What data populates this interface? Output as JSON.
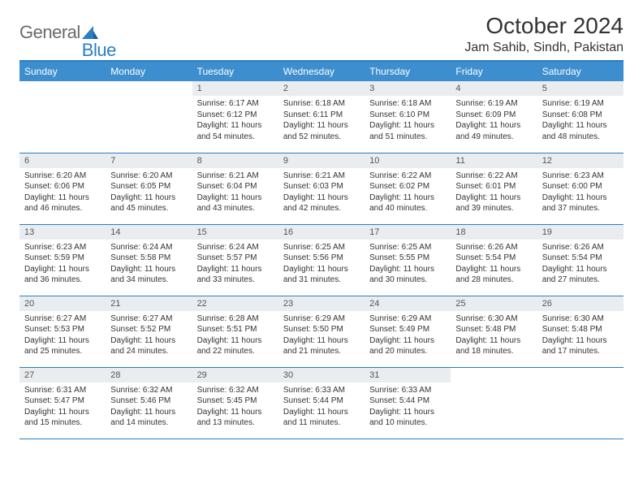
{
  "logo": {
    "text1": "General",
    "text2": "Blue"
  },
  "title": "October 2024",
  "location": "Jam Sahib, Sindh, Pakistan",
  "colors": {
    "header_bg": "#3d8ecf",
    "border": "#2a7ec3",
    "daynum_bg": "#e9edf0",
    "logo_gray": "#6a6a6a",
    "logo_blue": "#2a7ec3"
  },
  "weekdays": [
    "Sunday",
    "Monday",
    "Tuesday",
    "Wednesday",
    "Thursday",
    "Friday",
    "Saturday"
  ],
  "weeks": [
    [
      null,
      null,
      {
        "d": "1",
        "sr": "6:17 AM",
        "ss": "6:12 PM",
        "dl": "11 hours and 54 minutes."
      },
      {
        "d": "2",
        "sr": "6:18 AM",
        "ss": "6:11 PM",
        "dl": "11 hours and 52 minutes."
      },
      {
        "d": "3",
        "sr": "6:18 AM",
        "ss": "6:10 PM",
        "dl": "11 hours and 51 minutes."
      },
      {
        "d": "4",
        "sr": "6:19 AM",
        "ss": "6:09 PM",
        "dl": "11 hours and 49 minutes."
      },
      {
        "d": "5",
        "sr": "6:19 AM",
        "ss": "6:08 PM",
        "dl": "11 hours and 48 minutes."
      }
    ],
    [
      {
        "d": "6",
        "sr": "6:20 AM",
        "ss": "6:06 PM",
        "dl": "11 hours and 46 minutes."
      },
      {
        "d": "7",
        "sr": "6:20 AM",
        "ss": "6:05 PM",
        "dl": "11 hours and 45 minutes."
      },
      {
        "d": "8",
        "sr": "6:21 AM",
        "ss": "6:04 PM",
        "dl": "11 hours and 43 minutes."
      },
      {
        "d": "9",
        "sr": "6:21 AM",
        "ss": "6:03 PM",
        "dl": "11 hours and 42 minutes."
      },
      {
        "d": "10",
        "sr": "6:22 AM",
        "ss": "6:02 PM",
        "dl": "11 hours and 40 minutes."
      },
      {
        "d": "11",
        "sr": "6:22 AM",
        "ss": "6:01 PM",
        "dl": "11 hours and 39 minutes."
      },
      {
        "d": "12",
        "sr": "6:23 AM",
        "ss": "6:00 PM",
        "dl": "11 hours and 37 minutes."
      }
    ],
    [
      {
        "d": "13",
        "sr": "6:23 AM",
        "ss": "5:59 PM",
        "dl": "11 hours and 36 minutes."
      },
      {
        "d": "14",
        "sr": "6:24 AM",
        "ss": "5:58 PM",
        "dl": "11 hours and 34 minutes."
      },
      {
        "d": "15",
        "sr": "6:24 AM",
        "ss": "5:57 PM",
        "dl": "11 hours and 33 minutes."
      },
      {
        "d": "16",
        "sr": "6:25 AM",
        "ss": "5:56 PM",
        "dl": "11 hours and 31 minutes."
      },
      {
        "d": "17",
        "sr": "6:25 AM",
        "ss": "5:55 PM",
        "dl": "11 hours and 30 minutes."
      },
      {
        "d": "18",
        "sr": "6:26 AM",
        "ss": "5:54 PM",
        "dl": "11 hours and 28 minutes."
      },
      {
        "d": "19",
        "sr": "6:26 AM",
        "ss": "5:54 PM",
        "dl": "11 hours and 27 minutes."
      }
    ],
    [
      {
        "d": "20",
        "sr": "6:27 AM",
        "ss": "5:53 PM",
        "dl": "11 hours and 25 minutes."
      },
      {
        "d": "21",
        "sr": "6:27 AM",
        "ss": "5:52 PM",
        "dl": "11 hours and 24 minutes."
      },
      {
        "d": "22",
        "sr": "6:28 AM",
        "ss": "5:51 PM",
        "dl": "11 hours and 22 minutes."
      },
      {
        "d": "23",
        "sr": "6:29 AM",
        "ss": "5:50 PM",
        "dl": "11 hours and 21 minutes."
      },
      {
        "d": "24",
        "sr": "6:29 AM",
        "ss": "5:49 PM",
        "dl": "11 hours and 20 minutes."
      },
      {
        "d": "25",
        "sr": "6:30 AM",
        "ss": "5:48 PM",
        "dl": "11 hours and 18 minutes."
      },
      {
        "d": "26",
        "sr": "6:30 AM",
        "ss": "5:48 PM",
        "dl": "11 hours and 17 minutes."
      }
    ],
    [
      {
        "d": "27",
        "sr": "6:31 AM",
        "ss": "5:47 PM",
        "dl": "11 hours and 15 minutes."
      },
      {
        "d": "28",
        "sr": "6:32 AM",
        "ss": "5:46 PM",
        "dl": "11 hours and 14 minutes."
      },
      {
        "d": "29",
        "sr": "6:32 AM",
        "ss": "5:45 PM",
        "dl": "11 hours and 13 minutes."
      },
      {
        "d": "30",
        "sr": "6:33 AM",
        "ss": "5:44 PM",
        "dl": "11 hours and 11 minutes."
      },
      {
        "d": "31",
        "sr": "6:33 AM",
        "ss": "5:44 PM",
        "dl": "11 hours and 10 minutes."
      },
      null,
      null
    ]
  ],
  "labels": {
    "sunrise": "Sunrise: ",
    "sunset": "Sunset: ",
    "daylight": "Daylight: "
  }
}
